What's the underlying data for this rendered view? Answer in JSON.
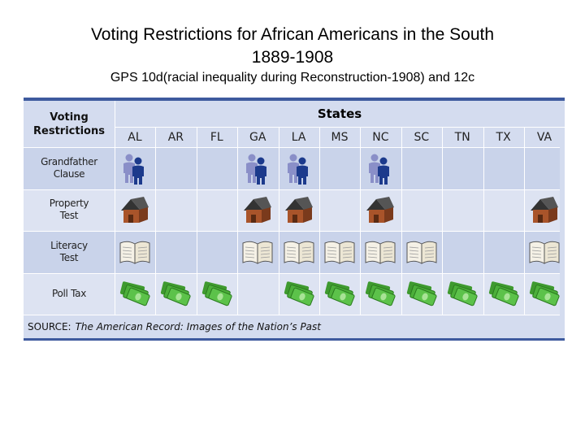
{
  "page": {
    "title_line1": "Voting Restrictions for African Americans in the South",
    "title_line2": "1889-1908",
    "subtitle": "GPS 10d(racial inequality during Reconstruction-1908) and 12c"
  },
  "table": {
    "corner_label_line1": "Voting",
    "corner_label_line2": "Restrictions",
    "states_header": "States",
    "states": [
      "AL",
      "AR",
      "FL",
      "GA",
      "LA",
      "MS",
      "NC",
      "SC",
      "TN",
      "TX",
      "VA"
    ],
    "rows": [
      {
        "label_line1": "Grandfather",
        "label_line2": "Clause",
        "icon": "people-icon",
        "marks": [
          true,
          false,
          false,
          true,
          true,
          false,
          true,
          false,
          false,
          false,
          false
        ]
      },
      {
        "label_line1": "Property",
        "label_line2": "Test",
        "icon": "house-icon",
        "marks": [
          true,
          false,
          false,
          true,
          true,
          false,
          true,
          false,
          false,
          false,
          true
        ]
      },
      {
        "label_line1": "Literacy",
        "label_line2": "Test",
        "icon": "book-icon",
        "marks": [
          true,
          false,
          false,
          true,
          true,
          true,
          true,
          true,
          false,
          false,
          true
        ]
      },
      {
        "label_line1": "Poll Tax",
        "label_line2": "",
        "icon": "money-icon",
        "marks": [
          true,
          true,
          true,
          false,
          true,
          true,
          true,
          true,
          true,
          true,
          true
        ]
      }
    ],
    "source_label": "SOURCE:",
    "source_title": "The American Record: Images of the Nation’s Past"
  },
  "colors": {
    "table_bg": "#d4dcef",
    "table_border": "#3e5a9e",
    "people_front": "#1c3a8c",
    "people_back": "#8a8fc8",
    "house_roof": "#333333",
    "house_wall": "#a9542a",
    "money": "#4caf3a"
  }
}
